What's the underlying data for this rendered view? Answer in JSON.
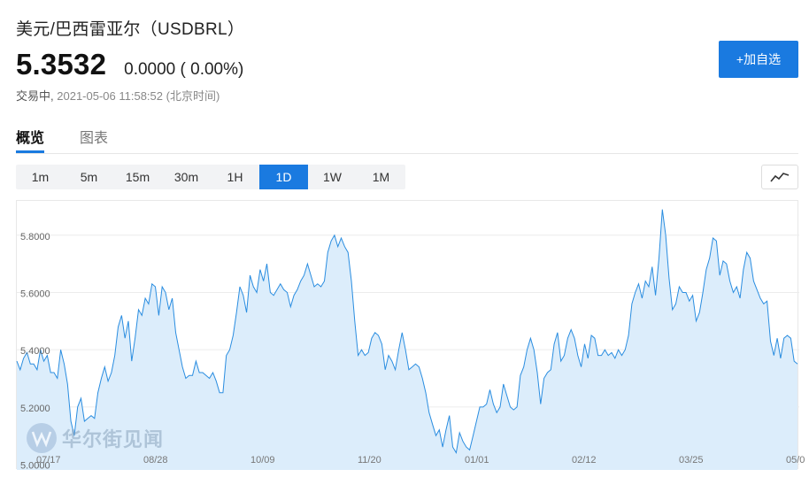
{
  "header": {
    "title": "美元/巴西雷亚尔（USDBRL）",
    "price": "5.3532",
    "change": "0.0000 ( 0.00%)",
    "status_label": "交易中,",
    "timestamp": "2021-05-06 11:58:52 (北京时间)",
    "add_watchlist": "+加自选"
  },
  "tabs": [
    {
      "label": "概览",
      "active": true
    },
    {
      "label": "图表",
      "active": false
    }
  ],
  "periods": [
    {
      "label": "1m",
      "active": false
    },
    {
      "label": "5m",
      "active": false
    },
    {
      "label": "15m",
      "active": false
    },
    {
      "label": "30m",
      "active": false
    },
    {
      "label": "1H",
      "active": false
    },
    {
      "label": "1D",
      "active": true
    },
    {
      "label": "1W",
      "active": false
    },
    {
      "label": "1M",
      "active": false
    }
  ],
  "icons": {
    "chart_type": "line-chart-icon",
    "watermark_logo": "wallstreetcn-logo-icon"
  },
  "watermark": "华尔街见闻",
  "colors": {
    "accent": "#1a7ae0",
    "line": "#2a8de0",
    "fill": "#dcedfb",
    "grid": "#ececec"
  },
  "chart_data": {
    "type": "area",
    "title": "",
    "xlabel": "",
    "ylabel": "",
    "ylim": [
      4.98,
      5.92
    ],
    "yticks": [
      5.0,
      5.2,
      5.4,
      5.6,
      5.8
    ],
    "ytick_labels": [
      "5.0000",
      "5.2000",
      "5.4000",
      "5.6000",
      "5.8000"
    ],
    "xtick_labels": [
      "07/17",
      "08/28",
      "10/09",
      "11/20",
      "01/01",
      "02/12",
      "03/25",
      "05/0"
    ],
    "grid": true,
    "series": [
      {
        "name": "",
        "values": [
          5.36,
          5.33,
          5.37,
          5.39,
          5.35,
          5.35,
          5.33,
          5.4,
          5.36,
          5.38,
          5.32,
          5.32,
          5.3,
          5.4,
          5.35,
          5.28,
          5.15,
          5.1,
          5.2,
          5.23,
          5.15,
          5.16,
          5.17,
          5.16,
          5.25,
          5.3,
          5.34,
          5.29,
          5.32,
          5.38,
          5.48,
          5.52,
          5.44,
          5.5,
          5.36,
          5.44,
          5.54,
          5.52,
          5.58,
          5.56,
          5.63,
          5.62,
          5.52,
          5.62,
          5.6,
          5.54,
          5.58,
          5.46,
          5.4,
          5.34,
          5.3,
          5.31,
          5.31,
          5.36,
          5.32,
          5.32,
          5.31,
          5.3,
          5.32,
          5.29,
          5.25,
          5.25,
          5.38,
          5.4,
          5.45,
          5.53,
          5.62,
          5.59,
          5.53,
          5.66,
          5.62,
          5.6,
          5.68,
          5.64,
          5.7,
          5.6,
          5.59,
          5.61,
          5.63,
          5.61,
          5.6,
          5.55,
          5.59,
          5.61,
          5.64,
          5.66,
          5.7,
          5.66,
          5.62,
          5.63,
          5.62,
          5.64,
          5.74,
          5.78,
          5.8,
          5.76,
          5.79,
          5.76,
          5.74,
          5.64,
          5.5,
          5.38,
          5.4,
          5.38,
          5.39,
          5.44,
          5.46,
          5.45,
          5.42,
          5.33,
          5.38,
          5.36,
          5.33,
          5.4,
          5.46,
          5.4,
          5.33,
          5.34,
          5.35,
          5.34,
          5.3,
          5.25,
          5.18,
          5.14,
          5.1,
          5.12,
          5.06,
          5.12,
          5.17,
          5.06,
          5.04,
          5.11,
          5.08,
          5.06,
          5.05,
          5.1,
          5.15,
          5.2,
          5.2,
          5.21,
          5.26,
          5.21,
          5.18,
          5.2,
          5.28,
          5.24,
          5.2,
          5.19,
          5.2,
          5.31,
          5.34,
          5.4,
          5.44,
          5.4,
          5.32,
          5.21,
          5.3,
          5.32,
          5.33,
          5.42,
          5.46,
          5.36,
          5.38,
          5.44,
          5.47,
          5.44,
          5.38,
          5.34,
          5.42,
          5.37,
          5.45,
          5.44,
          5.38,
          5.38,
          5.4,
          5.38,
          5.39,
          5.37,
          5.4,
          5.38,
          5.4,
          5.45,
          5.56,
          5.6,
          5.63,
          5.58,
          5.64,
          5.62,
          5.69,
          5.59,
          5.72,
          5.89,
          5.8,
          5.65,
          5.54,
          5.56,
          5.62,
          5.6,
          5.6,
          5.57,
          5.59,
          5.5,
          5.53,
          5.6,
          5.68,
          5.72,
          5.79,
          5.78,
          5.66,
          5.71,
          5.7,
          5.64,
          5.6,
          5.62,
          5.58,
          5.68,
          5.74,
          5.72,
          5.64,
          5.61,
          5.58,
          5.56,
          5.57,
          5.43,
          5.38,
          5.44,
          5.37,
          5.44,
          5.45,
          5.44,
          5.36,
          5.35
        ]
      }
    ]
  }
}
